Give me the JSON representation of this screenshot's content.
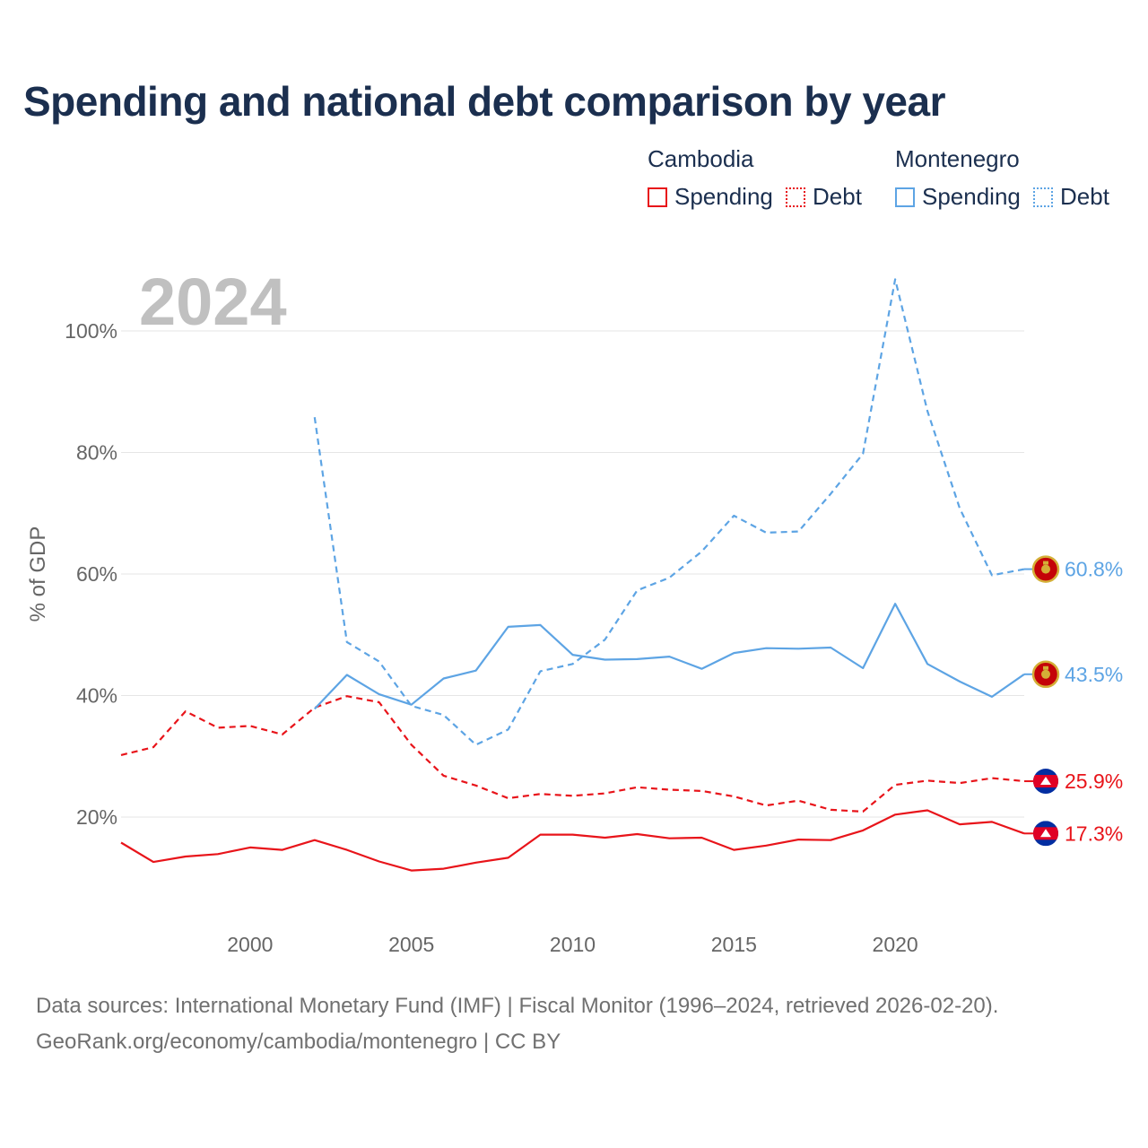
{
  "title": "Spending and national debt comparison by year",
  "legend": {
    "groups": [
      {
        "name": "Cambodia",
        "items": [
          {
            "label": "Spending",
            "style": "solid"
          },
          {
            "label": "Debt",
            "style": "dotted"
          }
        ],
        "color": "#e8141a"
      },
      {
        "name": "Montenegro",
        "items": [
          {
            "label": "Spending",
            "style": "solid"
          },
          {
            "label": "Debt",
            "style": "dotted"
          }
        ],
        "color": "#5da4e4"
      }
    ]
  },
  "sources": {
    "line1": "Data sources: International Monetary Fund (IMF) | Fiscal Monitor (1996–2024, retrieved 2026-02-20).",
    "line2": "GeoRank.org/economy/cambodia/montenegro | CC BY"
  },
  "chart_data": {
    "type": "line",
    "title": "Spending and national debt comparison by year",
    "year_label": "2024",
    "ylabel": "% of GDP",
    "xlabel": "",
    "xlim": [
      1996,
      2024
    ],
    "ylim": [
      0,
      110
    ],
    "x_ticks": [
      2000,
      2005,
      2010,
      2015,
      2020
    ],
    "y_ticks": [
      20,
      40,
      60,
      80,
      100
    ],
    "y_tick_labels": [
      "20%",
      "40%",
      "60%",
      "80%",
      "100%"
    ],
    "grid": true,
    "series": [
      {
        "name": "Cambodia Spending",
        "country": "Cambodia",
        "metric": "Spending",
        "dashed": false,
        "color": "#e8141a",
        "end_label": "17.3%",
        "x": [
          1996,
          1997,
          1998,
          1999,
          2000,
          2001,
          2002,
          2003,
          2004,
          2005,
          2006,
          2007,
          2008,
          2009,
          2010,
          2011,
          2012,
          2013,
          2014,
          2015,
          2016,
          2017,
          2018,
          2019,
          2020,
          2021,
          2022,
          2023,
          2024
        ],
        "values": [
          15.8,
          12.6,
          13.5,
          13.9,
          15.0,
          14.6,
          16.2,
          14.6,
          12.7,
          11.2,
          11.5,
          12.5,
          13.3,
          17.1,
          17.1,
          16.6,
          17.2,
          16.5,
          16.6,
          14.6,
          15.3,
          16.3,
          16.2,
          17.8,
          20.4,
          21.1,
          18.8,
          19.2,
          17.3
        ]
      },
      {
        "name": "Cambodia Debt",
        "country": "Cambodia",
        "metric": "Debt",
        "dashed": true,
        "color": "#e8141a",
        "end_label": "25.9%",
        "x": [
          1996,
          1997,
          1998,
          1999,
          2000,
          2001,
          2002,
          2003,
          2004,
          2005,
          2006,
          2007,
          2008,
          2009,
          2010,
          2011,
          2012,
          2013,
          2014,
          2015,
          2016,
          2017,
          2018,
          2019,
          2020,
          2021,
          2022,
          2023,
          2024
        ],
        "values": [
          30.2,
          31.5,
          37.4,
          34.7,
          35.0,
          33.6,
          38.0,
          39.9,
          38.9,
          31.9,
          26.8,
          25.2,
          23.1,
          23.8,
          23.5,
          23.9,
          24.9,
          24.5,
          24.3,
          23.4,
          21.9,
          22.7,
          21.2,
          20.9,
          25.3,
          26.0,
          25.6,
          26.4,
          25.9
        ]
      },
      {
        "name": "Montenegro Spending",
        "country": "Montenegro",
        "metric": "Spending",
        "dashed": false,
        "color": "#5da4e4",
        "end_label": "43.5%",
        "x": [
          2002,
          2003,
          2004,
          2005,
          2006,
          2007,
          2008,
          2009,
          2010,
          2011,
          2012,
          2013,
          2014,
          2015,
          2016,
          2017,
          2018,
          2019,
          2020,
          2021,
          2022,
          2023,
          2024
        ],
        "values": [
          37.8,
          43.4,
          40.2,
          38.5,
          42.8,
          44.1,
          51.3,
          51.6,
          46.7,
          45.9,
          46.0,
          46.4,
          44.4,
          47.0,
          47.8,
          47.7,
          47.9,
          44.5,
          55.1,
          45.2,
          42.3,
          39.8,
          43.5
        ]
      },
      {
        "name": "Montenegro Debt",
        "country": "Montenegro",
        "metric": "Debt",
        "dashed": true,
        "color": "#5da4e4",
        "end_label": "60.8%",
        "x": [
          2002,
          2003,
          2004,
          2005,
          2006,
          2007,
          2008,
          2009,
          2010,
          2011,
          2012,
          2013,
          2014,
          2015,
          2016,
          2017,
          2018,
          2019,
          2020,
          2021,
          2022,
          2023,
          2024
        ],
        "values": [
          85.8,
          48.8,
          45.6,
          38.3,
          36.8,
          31.9,
          34.4,
          44.0,
          45.2,
          49.2,
          57.3,
          59.4,
          63.7,
          69.6,
          66.8,
          67.0,
          73.2,
          79.8,
          108.5,
          86.8,
          70.8,
          59.8,
          60.8
        ]
      }
    ]
  }
}
